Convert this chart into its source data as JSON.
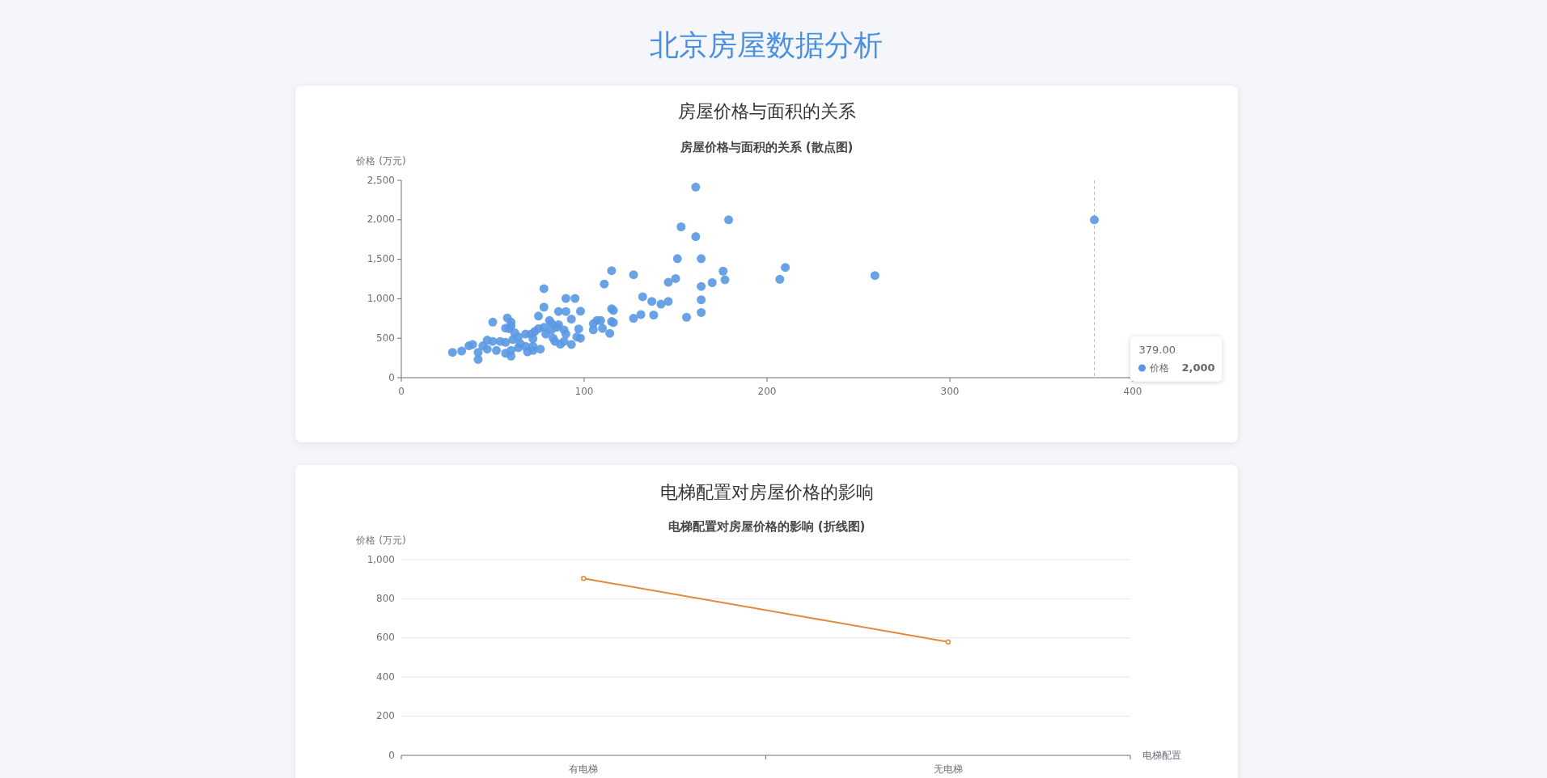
{
  "chart_data": [
    {
      "type": "scatter",
      "title": "房屋价格与面积的关系",
      "subtitle": "房屋价格与面积的关系 (散点图)",
      "ylabel": "价格 (万元)",
      "series": [
        {
          "name": "价格",
          "color": "#5a98e3",
          "x": [
            28,
            33,
            37,
            39,
            42,
            42,
            44.6,
            47,
            47,
            50,
            50,
            52,
            54,
            57,
            57,
            58,
            57,
            59,
            60,
            60,
            60,
            60,
            61,
            62,
            64,
            64,
            65,
            68,
            68,
            69,
            71,
            72,
            72,
            72,
            73,
            75,
            75,
            76,
            78,
            78,
            78,
            79,
            81,
            82,
            82,
            83,
            84,
            85,
            86,
            86,
            87,
            89,
            89,
            90,
            90,
            90,
            93,
            93,
            95,
            96,
            97,
            98,
            98,
            105,
            105,
            107,
            109,
            110,
            111,
            114,
            115,
            115,
            116,
            115,
            116,
            127,
            127,
            131,
            132,
            137,
            138,
            142,
            146,
            146,
            150,
            151,
            153,
            156,
            161,
            161,
            164,
            164,
            164,
            164,
            170,
            176,
            177,
            179,
            207,
            210,
            259,
            379
          ],
          "values": [
            321,
            338,
            404,
            421,
            321,
            231,
            404,
            476,
            362,
            704,
            459,
            345,
            459,
            448,
            310,
            756,
            628,
            621,
            704,
            655,
            345,
            273,
            483,
            569,
            517,
            380,
            431,
            552,
            397,
            328,
            552,
            493,
            397,
            345,
            586,
            621,
            780,
            362,
            1128,
            894,
            638,
            552,
            724,
            690,
            604,
            500,
            459,
            638,
            838,
            672,
            424,
            604,
            459,
            552,
            1004,
            838,
            742,
            421,
            1004,
            517,
            618,
            842,
            500,
            683,
            607,
            724,
            724,
            624,
            1187,
            562,
            1356,
            873,
            852,
            711,
            697,
            1304,
            752,
            800,
            1025,
            966,
            794,
            932,
            1208,
            966,
            1256,
            1508,
            1911,
            766,
            2415,
            1787,
            1508,
            1156,
            987,
            825,
            1204,
            1350,
            1240,
            2000,
            1247,
            1397,
            1294,
            2000
          ]
        }
      ],
      "xlim": [
        0,
        400
      ],
      "xticks": [
        0,
        100,
        200,
        300,
        400
      ],
      "ylim": [
        0,
        2500
      ],
      "yticks": [
        0,
        {
          "value": 500,
          "label": "500"
        },
        {
          "value": 1000,
          "label": "1,000"
        },
        {
          "value": 1500,
          "label": "1,500"
        },
        {
          "value": 2000,
          "label": "2,000"
        },
        {
          "value": 2500,
          "label": "2,500"
        }
      ],
      "grid": false,
      "marker": "circle",
      "ref_lines": [
        {
          "axis": "x",
          "value": 379,
          "line_style": "dashed",
          "color": "#bbbbbb"
        }
      ],
      "annotations": [
        "北京房屋数据分析",
        "379.00",
        "2,000"
      ]
    },
    {
      "type": "line",
      "title": "电梯配置对房屋价格的影响",
      "subtitle": "电梯配置对房屋价格的影响 (折线图)",
      "ylabel": "价格 (万元)",
      "xlabel": "电梯配置",
      "categories": [
        "有电梯",
        "无电梯"
      ],
      "series": [
        {
          "color": "#e08a3c",
          "values": [
            904,
            580
          ]
        }
      ],
      "ylim": [
        0,
        1000
      ],
      "yticks": [
        0,
        200,
        400,
        600,
        800,
        {
          "value": 1000,
          "label": "1,000"
        }
      ],
      "grid": "y",
      "marker": "circle",
      "line_style": "solid"
    }
  ]
}
